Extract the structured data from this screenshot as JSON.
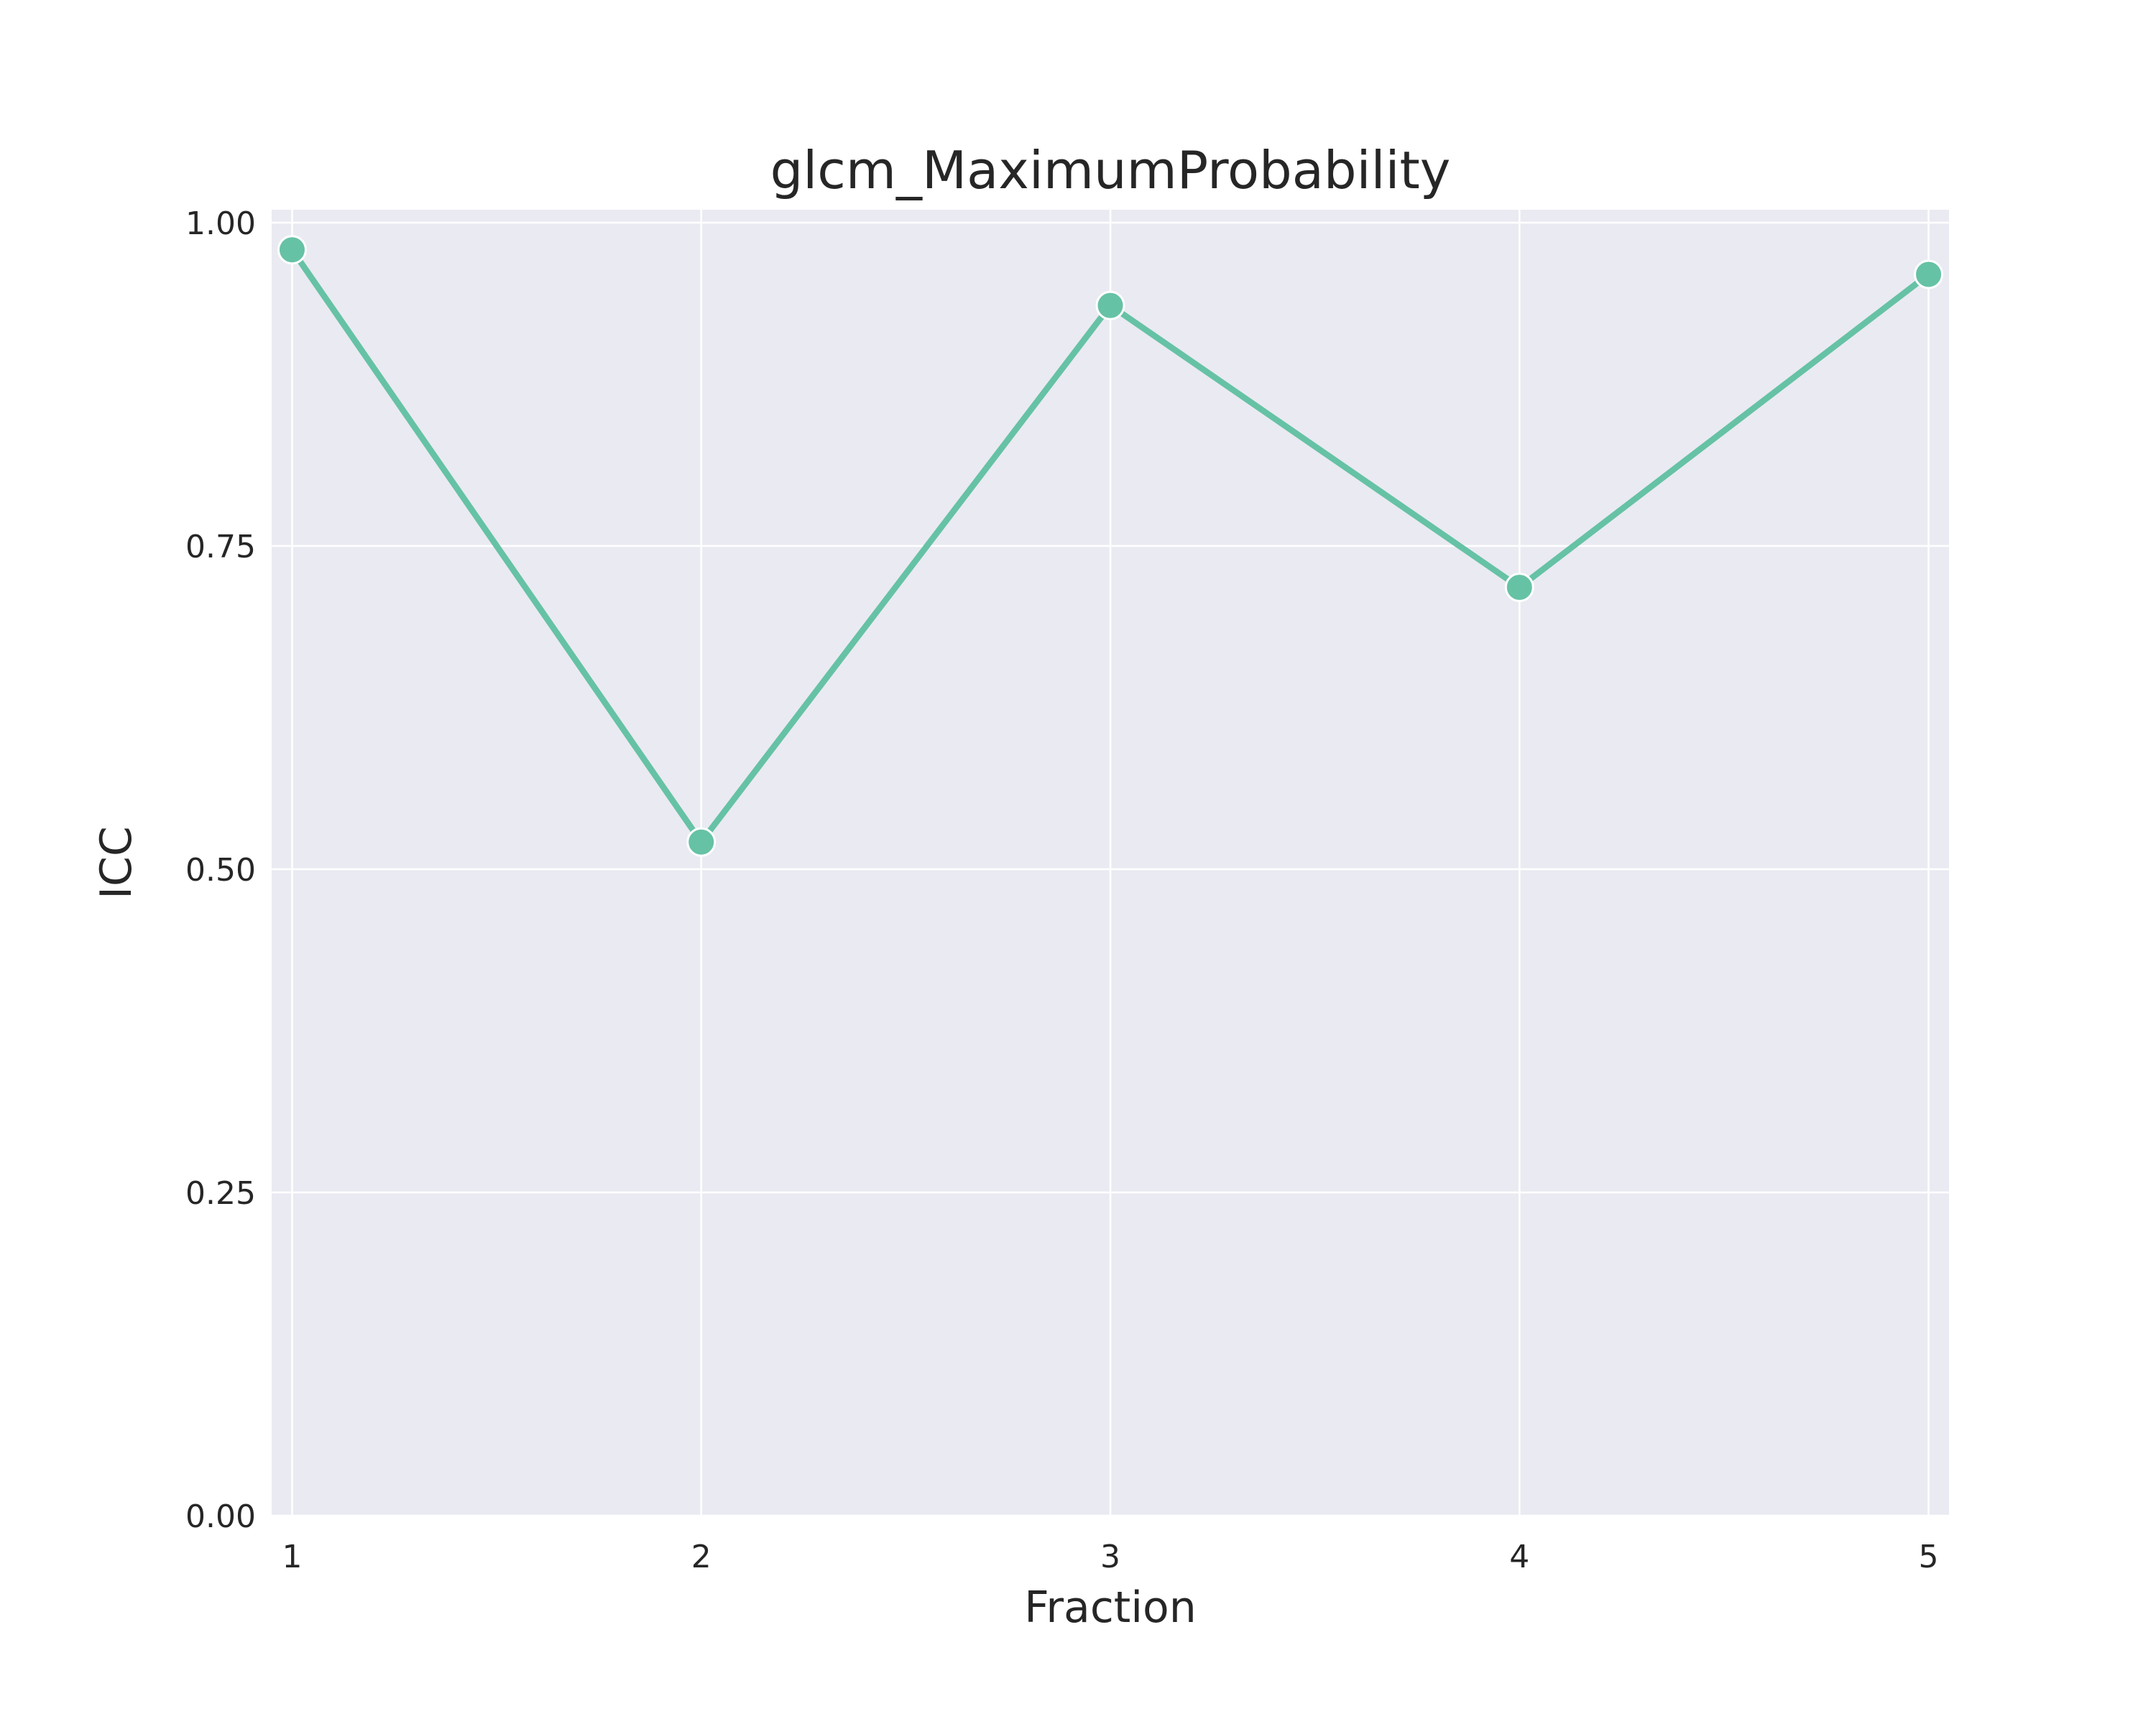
{
  "chart_data": {
    "type": "line",
    "title": "glcm_MaximumProbability",
    "xlabel": "Fraction",
    "ylabel": "ICC",
    "x": [
      1,
      2,
      3,
      4,
      5
    ],
    "x_tick_labels": [
      "1",
      "2",
      "3",
      "4",
      "5"
    ],
    "y_tick_labels": [
      "0.00",
      "0.25",
      "0.50",
      "0.75",
      "1.00"
    ],
    "y_ticks": [
      0.0,
      0.25,
      0.5,
      0.75,
      1.0
    ],
    "xlim": [
      0.95,
      5.05
    ],
    "ylim": [
      0.0,
      1.01
    ],
    "grid": true,
    "legend": "none",
    "series": [
      {
        "values": [
          0.979,
          0.521,
          0.936,
          0.718,
          0.96
        ],
        "color": "#66c2a5"
      }
    ]
  },
  "style": {
    "plot_background": "#eaeaf2",
    "grid_color": "#ffffff",
    "text_color": "#262626"
  }
}
